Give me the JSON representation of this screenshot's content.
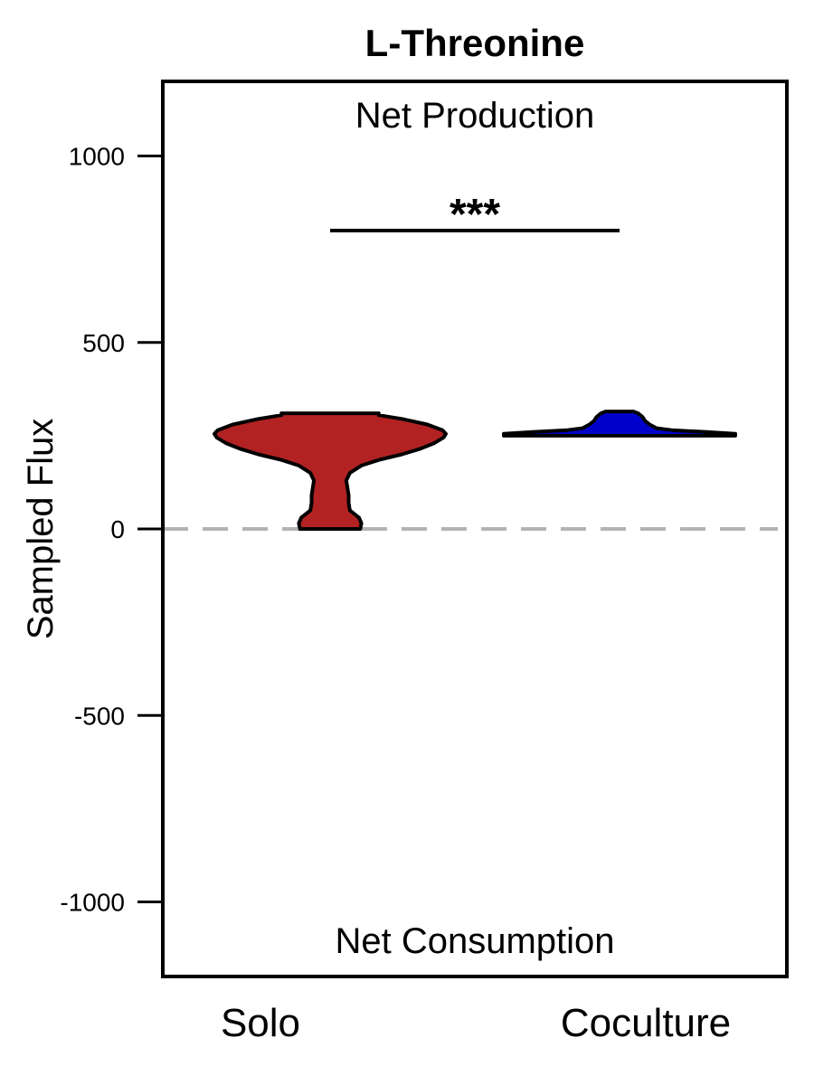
{
  "chart_data": {
    "type": "violin",
    "title": "L-Threonine",
    "xlabel": "",
    "ylabel": "Sampled Flux",
    "ylim": [
      -1200,
      1200
    ],
    "yticks": [
      1000,
      500,
      0,
      -500,
      -1000
    ],
    "ytick_labels": [
      "1000",
      "500",
      "0",
      "-500",
      "-1000"
    ],
    "categories": [
      "Solo",
      "Coculture"
    ],
    "annotations": {
      "top": "Net Production",
      "bottom": "Net Consumption",
      "significance": "***"
    },
    "reference_line": {
      "y": 0,
      "style": "dashed",
      "color": "#b3b3b3"
    },
    "significance_bar": {
      "y": 800,
      "from": "Solo",
      "to": "Coculture"
    },
    "series": [
      {
        "category": "Solo",
        "color": "#b22222",
        "min": 0,
        "max": 310,
        "profile": [
          [
            0,
            0.26
          ],
          [
            15,
            0.27
          ],
          [
            30,
            0.25
          ],
          [
            50,
            0.17
          ],
          [
            70,
            0.16
          ],
          [
            90,
            0.16
          ],
          [
            110,
            0.15
          ],
          [
            130,
            0.14
          ],
          [
            150,
            0.17
          ],
          [
            170,
            0.27
          ],
          [
            185,
            0.42
          ],
          [
            200,
            0.62
          ],
          [
            215,
            0.78
          ],
          [
            230,
            0.9
          ],
          [
            245,
            0.98
          ],
          [
            255,
            1.0
          ],
          [
            265,
            0.97
          ],
          [
            280,
            0.84
          ],
          [
            295,
            0.62
          ],
          [
            305,
            0.42
          ],
          [
            310,
            0.42
          ]
        ]
      },
      {
        "category": "Coculture",
        "color": "#0000cd",
        "min": 250,
        "max": 315,
        "profile": [
          [
            250,
            1.0
          ],
          [
            255,
            1.0
          ],
          [
            260,
            0.75
          ],
          [
            265,
            0.45
          ],
          [
            270,
            0.32
          ],
          [
            280,
            0.26
          ],
          [
            290,
            0.22
          ],
          [
            300,
            0.2
          ],
          [
            310,
            0.16
          ],
          [
            315,
            0.12
          ]
        ]
      }
    ]
  }
}
